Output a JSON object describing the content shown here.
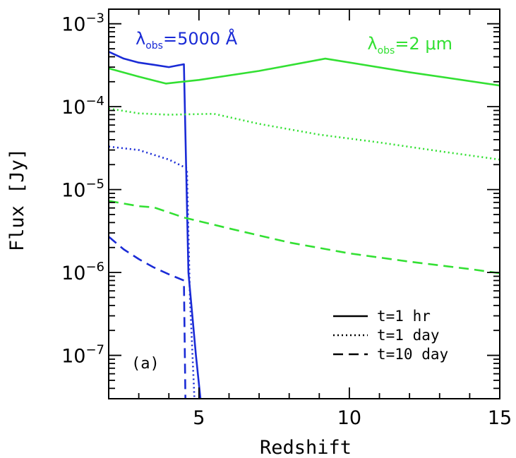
{
  "chart_data": {
    "type": "line",
    "xlabel": "Redshift",
    "ylabel": "Flux [Jy]",
    "yscale": "log",
    "xlim": [
      2,
      15
    ],
    "ylim": [
      3e-08,
      0.0015
    ],
    "grid": false,
    "panel_label": "(a)",
    "x_ticks": [
      {
        "value": 5,
        "label": "5"
      },
      {
        "value": 10,
        "label": "10"
      },
      {
        "value": 15,
        "label": "15"
      }
    ],
    "y_ticks": [
      {
        "value": 0.001,
        "base": "10",
        "exp": "−3"
      },
      {
        "value": 0.0001,
        "base": "10",
        "exp": "−4"
      },
      {
        "value": 1e-05,
        "base": "10",
        "exp": "−5"
      },
      {
        "value": 1e-06,
        "base": "10",
        "exp": "−6"
      },
      {
        "value": 1e-07,
        "base": "10",
        "exp": "−7"
      }
    ],
    "annotations": [
      {
        "prefix": "λ",
        "sub": "obs",
        "suffix": "=5000 Å",
        "color": "#1a2bd6"
      },
      {
        "prefix": "λ",
        "sub": "obs",
        "suffix": "=2 μm",
        "color": "#33e033"
      }
    ],
    "legend": {
      "placement": "bottom-right",
      "entries": [
        {
          "label": "t=1 hr",
          "dash": "solid"
        },
        {
          "label": "t=1 day",
          "dash": "dotted"
        },
        {
          "label": "t=10 day",
          "dash": "dashed"
        }
      ]
    },
    "series": [
      {
        "group": "5000A",
        "time": "t=1 hr",
        "color": "#1a2bd6",
        "dash": "solid",
        "points": [
          [
            2.0,
            0.00046
          ],
          [
            2.5,
            0.00038
          ],
          [
            3.0,
            0.00034
          ],
          [
            3.5,
            0.00032
          ],
          [
            4.0,
            0.0003
          ],
          [
            4.5,
            0.000325
          ],
          [
            4.65,
            1e-06
          ],
          [
            4.9,
            1e-07
          ],
          [
            5.05,
            3e-08
          ]
        ]
      },
      {
        "group": "5000A",
        "time": "t=1 day",
        "color": "#1a2bd6",
        "dash": "dotted",
        "points": [
          [
            2.0,
            3.3e-05
          ],
          [
            3.0,
            3e-05
          ],
          [
            4.0,
            2.3e-05
          ],
          [
            4.6,
            1.8e-05
          ],
          [
            4.7,
            5e-07
          ],
          [
            4.85,
            3e-08
          ]
        ]
      },
      {
        "group": "5000A",
        "time": "t=10 day",
        "color": "#1a2bd6",
        "dash": "dashed",
        "points": [
          [
            2.0,
            2.7e-06
          ],
          [
            2.5,
            1.9e-06
          ],
          [
            3.0,
            1.45e-06
          ],
          [
            3.5,
            1.15e-06
          ],
          [
            4.0,
            9.5e-07
          ],
          [
            4.5,
            8e-07
          ],
          [
            4.55,
            3e-08
          ]
        ]
      },
      {
        "group": "2um",
        "time": "t=1 hr",
        "color": "#33e033",
        "dash": "solid",
        "points": [
          [
            2.0,
            0.00029
          ],
          [
            3.0,
            0.00023
          ],
          [
            3.9,
            0.00019
          ],
          [
            5.0,
            0.00021
          ],
          [
            7.0,
            0.00027
          ],
          [
            9.2,
            0.00038
          ],
          [
            12.0,
            0.00026
          ],
          [
            15.0,
            0.00018
          ]
        ]
      },
      {
        "group": "2um",
        "time": "t=1 day",
        "color": "#33e033",
        "dash": "dotted",
        "points": [
          [
            2.0,
            9.5e-05
          ],
          [
            3.0,
            8.3e-05
          ],
          [
            4.0,
            8e-05
          ],
          [
            5.5,
            8.2e-05
          ],
          [
            7.0,
            6.2e-05
          ],
          [
            9.0,
            4.6e-05
          ],
          [
            11.0,
            3.7e-05
          ],
          [
            13.0,
            2.9e-05
          ],
          [
            15.0,
            2.3e-05
          ]
        ]
      },
      {
        "group": "2um",
        "time": "t=10 day",
        "color": "#33e033",
        "dash": "dashed",
        "points": [
          [
            2.0,
            7.3e-06
          ],
          [
            3.0,
            6.3e-06
          ],
          [
            3.5,
            6.1e-06
          ],
          [
            4.5,
            4.6e-06
          ],
          [
            6.0,
            3.4e-06
          ],
          [
            8.0,
            2.3e-06
          ],
          [
            10.0,
            1.7e-06
          ],
          [
            12.0,
            1.35e-06
          ],
          [
            14.0,
            1.1e-06
          ],
          [
            15.0,
            9.8e-07
          ]
        ]
      }
    ]
  }
}
